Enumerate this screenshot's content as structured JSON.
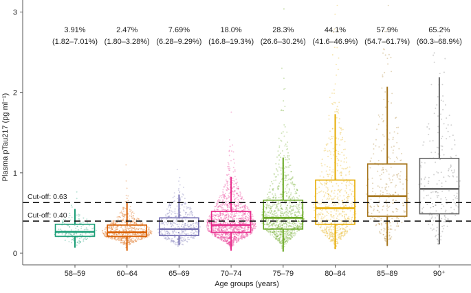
{
  "chart_data": {
    "type": "box",
    "xlabel": "Age groups (years)",
    "ylabel": "Plasma pTau217 (pg ml⁻¹)",
    "ylim": [
      -0.145,
      3.15
    ],
    "yticks": [
      0,
      1,
      2,
      3
    ],
    "grid": false,
    "cutoffs": [
      {
        "value": 0.63,
        "label": "Cut-off: 0.63"
      },
      {
        "value": 0.4,
        "label": "Cut-off: 0.40"
      }
    ],
    "categories": [
      "58–59",
      "60–64",
      "65–69",
      "70–74",
      "75–79",
      "80–84",
      "85–89",
      "90⁺"
    ],
    "percent_labels": [
      "3.91%",
      "2.47%",
      "7.69%",
      "18.0%",
      "28.3%",
      "44.1%",
      "57.9%",
      "65.2%"
    ],
    "ci_labels": [
      "(1.82–7.01%)",
      "(1.80–3.28%)",
      "(6.28–9.29%)",
      "(16.8–19.3%)",
      "(26.6–30.2%)",
      "(41.6–46.9%)",
      "(54.7–61.7%)",
      "(60.3–68.9%)"
    ],
    "colors": [
      "#1b9e77",
      "#d95f02",
      "#7570b3",
      "#e7298a",
      "#66a61e",
      "#e6ab02",
      "#a6761d",
      "#666666"
    ],
    "boxes": [
      {
        "q1": 0.21,
        "median": 0.265,
        "q3": 0.36,
        "whisker_low": 0.07,
        "whisker_high": 0.55
      },
      {
        "q1": 0.21,
        "median": 0.26,
        "q3": 0.35,
        "whisker_low": 0.03,
        "whisker_high": 0.63
      },
      {
        "q1": 0.22,
        "median": 0.3,
        "q3": 0.44,
        "whisker_low": 0.1,
        "whisker_high": 0.73
      },
      {
        "q1": 0.26,
        "median": 0.35,
        "q3": 0.52,
        "whisker_low": 0.03,
        "whisker_high": 0.95
      },
      {
        "q1": 0.3,
        "median": 0.44,
        "q3": 0.66,
        "whisker_low": 0.02,
        "whisker_high": 1.19
      },
      {
        "q1": 0.36,
        "median": 0.56,
        "q3": 0.91,
        "whisker_low": 0.05,
        "whisker_high": 1.73
      },
      {
        "q1": 0.46,
        "median": 0.71,
        "q3": 1.11,
        "whisker_low": 0.09,
        "whisker_high": 2.07
      },
      {
        "q1": 0.49,
        "median": 0.8,
        "q3": 1.18,
        "whisker_low": 0.11,
        "whisker_high": 2.19
      }
    ]
  }
}
